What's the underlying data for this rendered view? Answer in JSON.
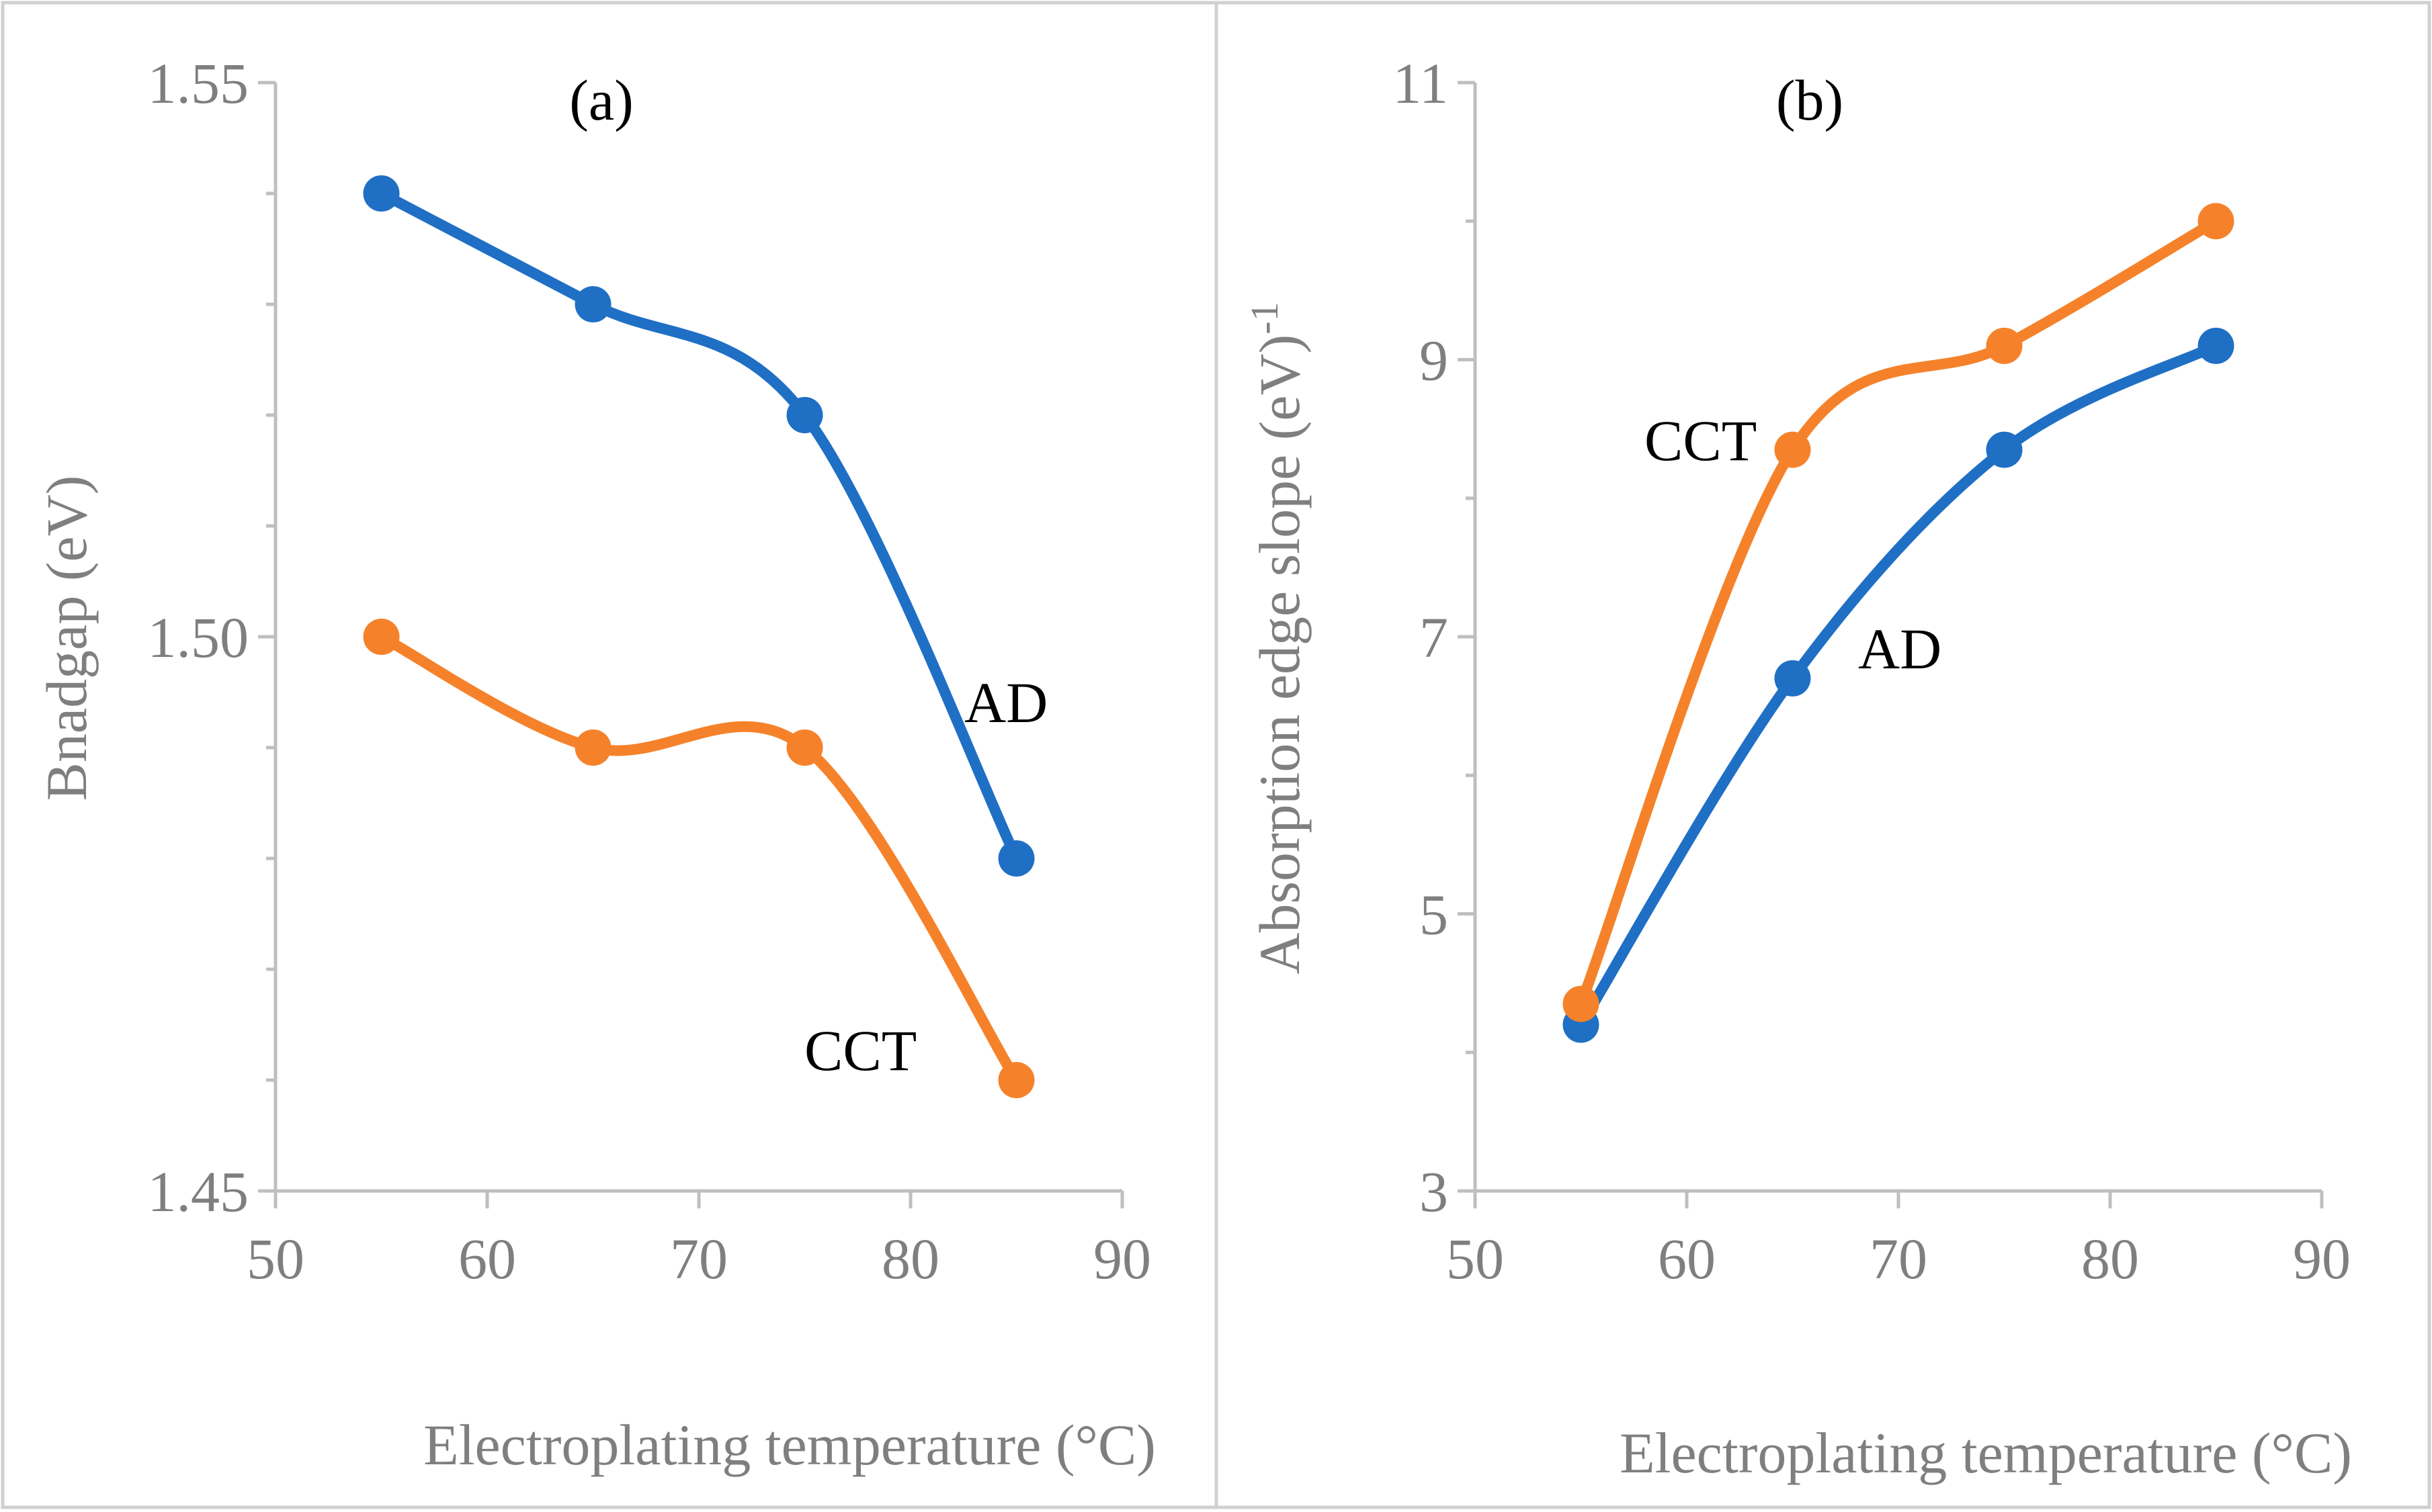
{
  "chart_data": [
    {
      "type": "line",
      "panel_label": "(a)",
      "xlabel": "Electroplating temperature (°C)",
      "ylabel": "Bnadgap (eV)",
      "xlim": [
        50,
        90
      ],
      "ylim": [
        1.45,
        1.55
      ],
      "xticks": [
        50,
        60,
        70,
        80,
        90
      ],
      "xtick_labels": [
        "50",
        "60",
        "70",
        "80",
        "90"
      ],
      "yticks": [
        1.45,
        1.5,
        1.55
      ],
      "ytick_labels": [
        "1.45",
        "1.50",
        "1.55"
      ],
      "yminor": [
        1.46,
        1.47,
        1.48,
        1.49,
        1.51,
        1.52,
        1.53,
        1.54
      ],
      "x": [
        55,
        65,
        75,
        85
      ],
      "series": [
        {
          "name": "AD",
          "color": "#1f6fc5",
          "values": [
            1.54,
            1.53,
            1.52,
            1.48
          ]
        },
        {
          "name": "CCT",
          "color": "#f5822a",
          "values": [
            1.5,
            1.49,
            1.49,
            1.46
          ]
        }
      ]
    },
    {
      "type": "line",
      "panel_label": "(b)",
      "xlabel": "Electroplating temperature (°C)",
      "ylabel": "Absorption edge slope (eV)",
      "ylabel_superscript": "-1",
      "xlim": [
        50,
        90
      ],
      "ylim": [
        3,
        11
      ],
      "xticks": [
        50,
        60,
        70,
        80,
        90
      ],
      "xtick_labels": [
        "50",
        "60",
        "70",
        "80",
        "90"
      ],
      "yticks": [
        3,
        5,
        7,
        9,
        11
      ],
      "ytick_labels": [
        "3",
        "5",
        "7",
        "9",
        "11"
      ],
      "yminor": [
        4,
        6,
        8,
        10
      ],
      "x": [
        55,
        65,
        75,
        85
      ],
      "series": [
        {
          "name": "AD",
          "color": "#1f6fc5",
          "values": [
            4.2,
            6.7,
            8.35,
            9.1
          ]
        },
        {
          "name": "CCT",
          "color": "#f5822a",
          "values": [
            4.35,
            8.35,
            9.1,
            10.0
          ]
        }
      ]
    }
  ]
}
